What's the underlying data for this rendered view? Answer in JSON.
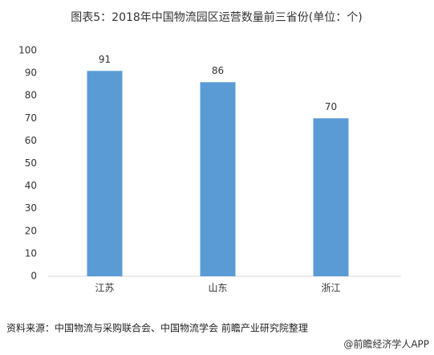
{
  "chart_data": {
    "type": "bar",
    "title": "图表5：2018年中国物流园区运营数量前三省份(单位：个)",
    "categories": [
      "江苏",
      "山东",
      "浙江"
    ],
    "values": [
      91,
      86,
      70
    ],
    "color": "#5b9bd5",
    "ylim": [
      0,
      100
    ],
    "yticks": [
      0,
      10,
      20,
      30,
      40,
      50,
      60,
      70,
      80,
      90,
      100
    ],
    "grid": false
  },
  "source": "资料来源：中国物流与采购联合会、中国物流学会 前瞻产业研究院整理",
  "footer": "@前瞻经济学人APP"
}
